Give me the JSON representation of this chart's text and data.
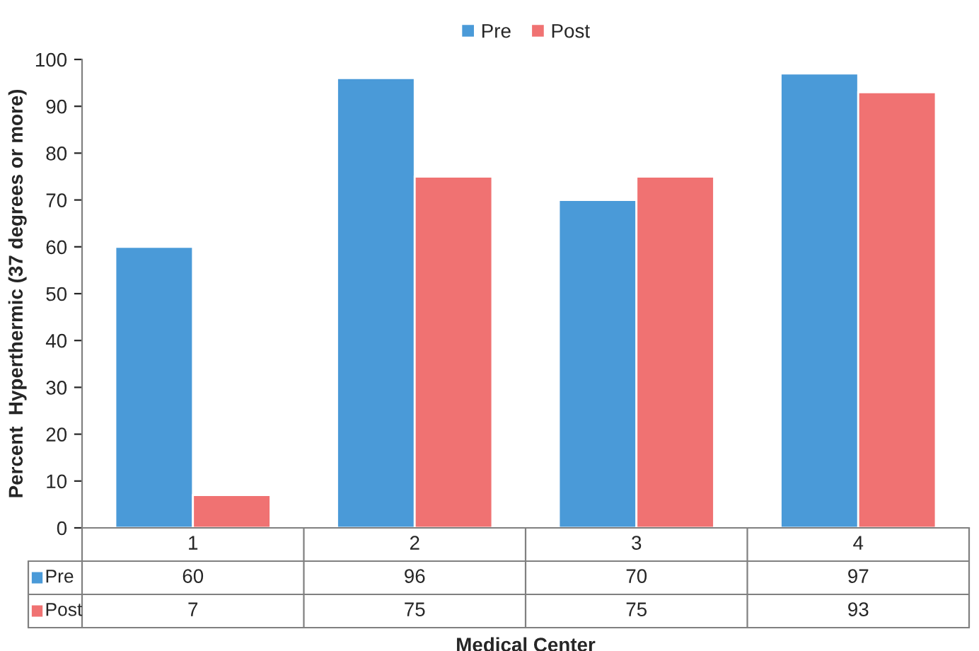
{
  "chart_data": {
    "type": "bar",
    "xlabel": "Medical Center",
    "ylabel": "Percent  Hyperthermic (37 degrees or more)",
    "categories": [
      "1",
      "2",
      "3",
      "4"
    ],
    "series": [
      {
        "name": "Pre",
        "color": "#4a9ad8",
        "values": [
          60,
          96,
          70,
          97
        ]
      },
      {
        "name": "Post",
        "color": "#f07272",
        "values": [
          7,
          75,
          75,
          93
        ]
      }
    ],
    "ylim": [
      0,
      100
    ],
    "yticks": [
      0,
      10,
      20,
      30,
      40,
      50,
      60,
      70,
      80,
      90,
      100
    ],
    "data_labels": true,
    "legend": "top",
    "grid": false
  }
}
